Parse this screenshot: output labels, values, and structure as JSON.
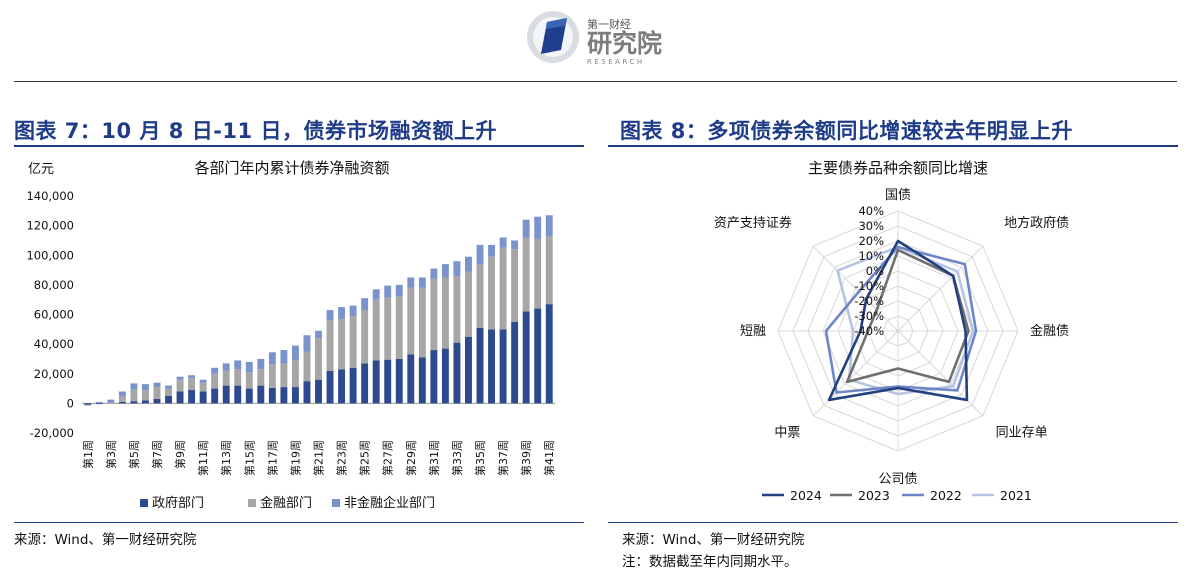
{
  "header": {
    "logo_brand": "第一财经",
    "logo_name": "研究院",
    "logo_sub": "RESEARCH"
  },
  "left": {
    "figure_title": "图表 7：10 月 8 日-11 日，债券市场融资额上升",
    "source": "来源：Wind、第一财经研究院"
  },
  "right": {
    "figure_title": "图表 8：多项债券余额同比增速较去年明显上升",
    "source": "来源：Wind、第一财经研究院",
    "note": "注：数据截至年内同期水平。"
  },
  "chart_data": [
    {
      "type": "bar",
      "stacked": true,
      "title": "各部门年内累计债券净融资额",
      "ylabel": "亿元",
      "ylim": [
        -20000,
        140000
      ],
      "yticks": [
        -20000,
        0,
        20000,
        40000,
        60000,
        80000,
        100000,
        120000,
        140000
      ],
      "ytick_labels": [
        "-20,000",
        "0",
        "20,000",
        "40,000",
        "60,000",
        "80,000",
        "100,000",
        "120,000",
        "140,000"
      ],
      "categories": [
        "第1周",
        "第2周",
        "第3周",
        "第4周",
        "第5周",
        "第6周",
        "第7周",
        "第8周",
        "第9周",
        "第10周",
        "第11周",
        "第12周",
        "第13周",
        "第14周",
        "第15周",
        "第16周",
        "第17周",
        "第18周",
        "第19周",
        "第20周",
        "第21周",
        "第22周",
        "第23周",
        "第24周",
        "第25周",
        "第26周",
        "第27周",
        "第28周",
        "第29周",
        "第30周",
        "第31周",
        "第32周",
        "第33周",
        "第34周",
        "第35周",
        "第36周",
        "第37周",
        "第38周",
        "第39周",
        "第40周",
        "第41周"
      ],
      "xtick_labels": [
        "第1周",
        "",
        "第3周",
        "",
        "第5周",
        "",
        "第7周",
        "",
        "第9周",
        "",
        "第11周",
        "",
        "第13周",
        "",
        "第15周",
        "",
        "第17周",
        "",
        "第19周",
        "",
        "第21周",
        "",
        "第23周",
        "",
        "第25周",
        "",
        "第27周",
        "",
        "第29周",
        "",
        "第31周",
        "",
        "第33周",
        "",
        "第35周",
        "",
        "第37周",
        "",
        "第39周",
        "",
        "第41周"
      ],
      "series": [
        {
          "name": "政府部门",
          "color": "#2e4a8f",
          "values": [
            -1000,
            -500,
            0,
            1000,
            1500,
            2000,
            3000,
            5000,
            8000,
            9000,
            8000,
            10000,
            12000,
            12000,
            10000,
            12000,
            10500,
            11000,
            11000,
            15000,
            16000,
            22000,
            23000,
            24000,
            27000,
            29000,
            29500,
            30000,
            33000,
            31000,
            36000,
            37000,
            41000,
            45000,
            51000,
            50000,
            50000,
            55000,
            62000,
            64000,
            67000
          ]
        },
        {
          "name": "金融部门",
          "color": "#a6a6a6",
          "values": [
            -500,
            0,
            500,
            4000,
            8000,
            7000,
            8000,
            5000,
            8000,
            8000,
            6000,
            10000,
            10000,
            11000,
            11000,
            11000,
            16000,
            16000,
            18000,
            20000,
            28000,
            34000,
            34000,
            35000,
            36000,
            41000,
            42000,
            42000,
            45000,
            47000,
            48000,
            48000,
            45000,
            44000,
            43000,
            49000,
            55000,
            49000,
            50000,
            47000,
            46000
          ]
        },
        {
          "name": "非金融企业部门",
          "color": "#7a93cc",
          "values": [
            0,
            1000,
            2000,
            3000,
            4000,
            4000,
            3000,
            2000,
            2000,
            2000,
            2000,
            4000,
            5000,
            6000,
            7000,
            7000,
            8000,
            9000,
            10000,
            11000,
            5000,
            7000,
            8000,
            7000,
            8000,
            7000,
            8000,
            8000,
            7000,
            7000,
            7000,
            9000,
            10000,
            10000,
            13000,
            8000,
            7000,
            6000,
            12000,
            15000,
            14000
          ]
        }
      ],
      "legend": "bottom"
    },
    {
      "type": "radar",
      "title": "主要债券品种余额同比增速",
      "axes": [
        "国债",
        "地方政府债",
        "金融债",
        "同业存单",
        "公司债",
        "中票",
        "短融",
        "资产支持证券"
      ],
      "rlim": [
        -40,
        40
      ],
      "rticks": [
        -40,
        -30,
        -20,
        -10,
        0,
        10,
        20,
        30,
        40
      ],
      "rtick_labels": [
        "-40%",
        "-30%",
        "-20%",
        "-10%",
        "0%",
        "10%",
        "20%",
        "30%",
        "40%"
      ],
      "series": [
        {
          "name": "2024",
          "color": "#23407f",
          "values": [
            20,
            12,
            5,
            25,
            -2,
            25,
            -15,
            -10
          ]
        },
        {
          "name": "2023",
          "color": "#6f6f6f",
          "values": [
            14,
            12,
            7,
            8,
            -15,
            8,
            -20,
            -20
          ]
        },
        {
          "name": "2022",
          "color": "#6f86c6",
          "values": [
            16,
            23,
            12,
            16,
            -3,
            18,
            8,
            -3
          ]
        },
        {
          "name": "2021",
          "color": "#b6c3e4",
          "values": [
            16,
            16,
            10,
            12,
            2,
            6,
            -10,
            17
          ]
        }
      ],
      "legend": "bottom"
    }
  ]
}
